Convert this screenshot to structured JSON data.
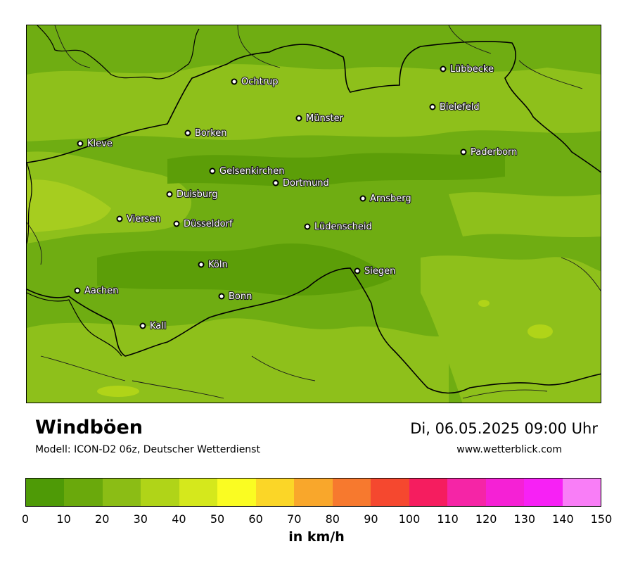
{
  "title": "Windböen",
  "model": "Modell: ICON-D2 06z, Deutscher Wetterdienst",
  "datetime": "Di, 06.05.2025 09:00 Uhr",
  "website": "www.wetterblick.com",
  "legend": {
    "unit": "in km/h",
    "ticks": [
      "0",
      "10",
      "20",
      "30",
      "40",
      "50",
      "60",
      "70",
      "80",
      "90",
      "100",
      "110",
      "120",
      "130",
      "140",
      "150"
    ],
    "colors": [
      "#4e9a06",
      "#6aa90c",
      "#8bbd15",
      "#b0d418",
      "#d5e81c",
      "#fafc22",
      "#fbd627",
      "#f9a72b",
      "#f7792e",
      "#f5482f",
      "#f51d5f",
      "#f525a6",
      "#f521d5",
      "#f721f5",
      "#f97ef7"
    ]
  },
  "map_colors": {
    "base": "#6fad12",
    "light": "#8ec01b",
    "lighter": "#a6cd1f",
    "dark": "#5c9e08"
  },
  "cities": [
    {
      "name": "Ochtrup"
    },
    {
      "name": "Lübbecke"
    },
    {
      "name": "Bielefeld"
    },
    {
      "name": "Münster"
    },
    {
      "name": "Borken"
    },
    {
      "name": "Kleve"
    },
    {
      "name": "Paderborn"
    },
    {
      "name": "Gelsenkirchen"
    },
    {
      "name": "Dortmund"
    },
    {
      "name": "Duisburg"
    },
    {
      "name": "Arnsberg"
    },
    {
      "name": "Viersen"
    },
    {
      "name": "Düsseldorf"
    },
    {
      "name": "Lüdenscheid"
    },
    {
      "name": "Köln"
    },
    {
      "name": "Siegen"
    },
    {
      "name": "Aachen"
    },
    {
      "name": "Bonn"
    },
    {
      "name": "Kall"
    }
  ]
}
